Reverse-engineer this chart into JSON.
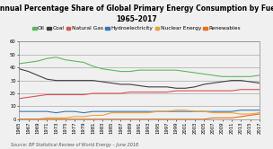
{
  "title_line1": "Annual Percentage Share of Global Primary Energy Consumption by Fuel",
  "title_line2": "1965–2017",
  "source": "Source: BP Statistical Review of World Energy – June 2018",
  "years": [
    1965,
    1967,
    1969,
    1971,
    1973,
    1975,
    1977,
    1979,
    1981,
    1983,
    1985,
    1987,
    1989,
    1991,
    1993,
    1995,
    1997,
    1999,
    2001,
    2003,
    2005,
    2007,
    2009,
    2011,
    2013,
    2015,
    2017
  ],
  "oil": [
    43,
    44,
    45,
    47,
    48,
    46,
    45,
    44,
    41,
    39,
    38,
    37,
    37,
    38,
    38,
    38,
    38,
    38,
    37,
    36,
    35,
    34,
    33,
    33,
    33,
    33,
    34
  ],
  "coal": [
    39,
    37,
    34,
    31,
    30,
    30,
    30,
    30,
    30,
    29,
    28,
    27,
    27,
    26,
    25,
    25,
    25,
    24,
    24,
    25,
    27,
    28,
    29,
    30,
    30,
    29,
    28
  ],
  "natural_gas": [
    16,
    17,
    18,
    19,
    19,
    19,
    19,
    19,
    20,
    20,
    20,
    20,
    21,
    21,
    21,
    21,
    21,
    22,
    22,
    22,
    22,
    22,
    22,
    22,
    23,
    23,
    23
  ],
  "hydro": [
    6,
    6,
    6,
    6,
    5,
    6,
    6,
    5,
    6,
    6,
    6,
    6,
    6,
    6,
    6,
    6,
    6,
    6,
    6,
    6,
    6,
    6,
    6,
    6,
    7,
    7,
    7
  ],
  "nuclear": [
    0,
    0,
    0,
    1,
    1,
    1,
    2,
    2,
    3,
    3,
    5,
    5,
    5,
    5,
    5,
    6,
    6,
    7,
    7,
    6,
    6,
    5,
    5,
    5,
    4,
    4,
    5
  ],
  "renewables": [
    0,
    0,
    0,
    0,
    0,
    0,
    0,
    0,
    0,
    0,
    0,
    0,
    0,
    0,
    0,
    0,
    0,
    0,
    0,
    0,
    0,
    1,
    1,
    1,
    2,
    3,
    4
  ],
  "oil_color": "#5CB85C",
  "coal_color": "#404040",
  "gas_color": "#D9534F",
  "hydro_color": "#337AB7",
  "nuclear_color": "#F0A030",
  "renewables_color": "#E8701A",
  "ylim": [
    0,
    60
  ],
  "yticks": [
    0,
    10,
    20,
    30,
    40,
    50,
    60
  ],
  "bg_color": "#F0F0F0",
  "title_fontsize": 5.5,
  "legend_fontsize": 4.2,
  "tick_fontsize": 3.8,
  "source_fontsize": 3.5,
  "linewidth": 0.8
}
